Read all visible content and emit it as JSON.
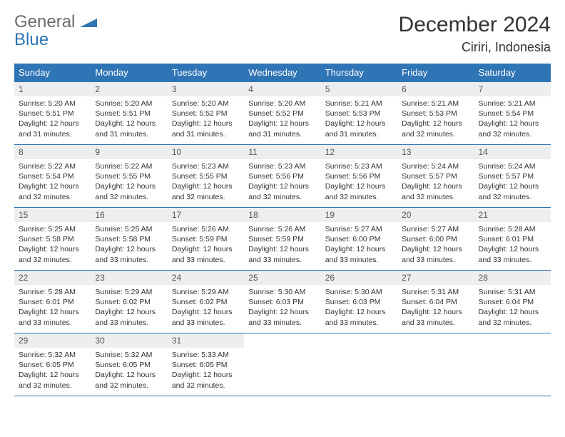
{
  "brand": {
    "word1": "General",
    "word2": "Blue",
    "word1_color": "#6b6b6b",
    "word2_color": "#2f74b5",
    "mark_color": "#2f74b5"
  },
  "header": {
    "month_title": "December 2024",
    "location": "Ciriri, Indonesia",
    "title_color": "#333333",
    "title_fontsize": 30,
    "location_fontsize": 18
  },
  "calendar": {
    "header_bg": "#2f74b5",
    "header_fg": "#ffffff",
    "daynum_bg": "#eceeef",
    "border_color": "#2f74b5",
    "text_color": "#333333",
    "day_names": [
      "Sunday",
      "Monday",
      "Tuesday",
      "Wednesday",
      "Thursday",
      "Friday",
      "Saturday"
    ],
    "weeks": [
      [
        {
          "n": "1",
          "sunrise": "5:20 AM",
          "sunset": "5:51 PM",
          "daylight": "12 hours and 31 minutes."
        },
        {
          "n": "2",
          "sunrise": "5:20 AM",
          "sunset": "5:51 PM",
          "daylight": "12 hours and 31 minutes."
        },
        {
          "n": "3",
          "sunrise": "5:20 AM",
          "sunset": "5:52 PM",
          "daylight": "12 hours and 31 minutes."
        },
        {
          "n": "4",
          "sunrise": "5:20 AM",
          "sunset": "5:52 PM",
          "daylight": "12 hours and 31 minutes."
        },
        {
          "n": "5",
          "sunrise": "5:21 AM",
          "sunset": "5:53 PM",
          "daylight": "12 hours and 31 minutes."
        },
        {
          "n": "6",
          "sunrise": "5:21 AM",
          "sunset": "5:53 PM",
          "daylight": "12 hours and 32 minutes."
        },
        {
          "n": "7",
          "sunrise": "5:21 AM",
          "sunset": "5:54 PM",
          "daylight": "12 hours and 32 minutes."
        }
      ],
      [
        {
          "n": "8",
          "sunrise": "5:22 AM",
          "sunset": "5:54 PM",
          "daylight": "12 hours and 32 minutes."
        },
        {
          "n": "9",
          "sunrise": "5:22 AM",
          "sunset": "5:55 PM",
          "daylight": "12 hours and 32 minutes."
        },
        {
          "n": "10",
          "sunrise": "5:23 AM",
          "sunset": "5:55 PM",
          "daylight": "12 hours and 32 minutes."
        },
        {
          "n": "11",
          "sunrise": "5:23 AM",
          "sunset": "5:56 PM",
          "daylight": "12 hours and 32 minutes."
        },
        {
          "n": "12",
          "sunrise": "5:23 AM",
          "sunset": "5:56 PM",
          "daylight": "12 hours and 32 minutes."
        },
        {
          "n": "13",
          "sunrise": "5:24 AM",
          "sunset": "5:57 PM",
          "daylight": "12 hours and 32 minutes."
        },
        {
          "n": "14",
          "sunrise": "5:24 AM",
          "sunset": "5:57 PM",
          "daylight": "12 hours and 32 minutes."
        }
      ],
      [
        {
          "n": "15",
          "sunrise": "5:25 AM",
          "sunset": "5:58 PM",
          "daylight": "12 hours and 32 minutes."
        },
        {
          "n": "16",
          "sunrise": "5:25 AM",
          "sunset": "5:58 PM",
          "daylight": "12 hours and 33 minutes."
        },
        {
          "n": "17",
          "sunrise": "5:26 AM",
          "sunset": "5:59 PM",
          "daylight": "12 hours and 33 minutes."
        },
        {
          "n": "18",
          "sunrise": "5:26 AM",
          "sunset": "5:59 PM",
          "daylight": "12 hours and 33 minutes."
        },
        {
          "n": "19",
          "sunrise": "5:27 AM",
          "sunset": "6:00 PM",
          "daylight": "12 hours and 33 minutes."
        },
        {
          "n": "20",
          "sunrise": "5:27 AM",
          "sunset": "6:00 PM",
          "daylight": "12 hours and 33 minutes."
        },
        {
          "n": "21",
          "sunrise": "5:28 AM",
          "sunset": "6:01 PM",
          "daylight": "12 hours and 33 minutes."
        }
      ],
      [
        {
          "n": "22",
          "sunrise": "5:28 AM",
          "sunset": "6:01 PM",
          "daylight": "12 hours and 33 minutes."
        },
        {
          "n": "23",
          "sunrise": "5:29 AM",
          "sunset": "6:02 PM",
          "daylight": "12 hours and 33 minutes."
        },
        {
          "n": "24",
          "sunrise": "5:29 AM",
          "sunset": "6:02 PM",
          "daylight": "12 hours and 33 minutes."
        },
        {
          "n": "25",
          "sunrise": "5:30 AM",
          "sunset": "6:03 PM",
          "daylight": "12 hours and 33 minutes."
        },
        {
          "n": "26",
          "sunrise": "5:30 AM",
          "sunset": "6:03 PM",
          "daylight": "12 hours and 33 minutes."
        },
        {
          "n": "27",
          "sunrise": "5:31 AM",
          "sunset": "6:04 PM",
          "daylight": "12 hours and 33 minutes."
        },
        {
          "n": "28",
          "sunrise": "5:31 AM",
          "sunset": "6:04 PM",
          "daylight": "12 hours and 32 minutes."
        }
      ],
      [
        {
          "n": "29",
          "sunrise": "5:32 AM",
          "sunset": "6:05 PM",
          "daylight": "12 hours and 32 minutes."
        },
        {
          "n": "30",
          "sunrise": "5:32 AM",
          "sunset": "6:05 PM",
          "daylight": "12 hours and 32 minutes."
        },
        {
          "n": "31",
          "sunrise": "5:33 AM",
          "sunset": "6:05 PM",
          "daylight": "12 hours and 32 minutes."
        },
        null,
        null,
        null,
        null
      ]
    ],
    "labels": {
      "sunrise_prefix": "Sunrise: ",
      "sunset_prefix": "Sunset: ",
      "daylight_prefix": "Daylight: "
    }
  }
}
